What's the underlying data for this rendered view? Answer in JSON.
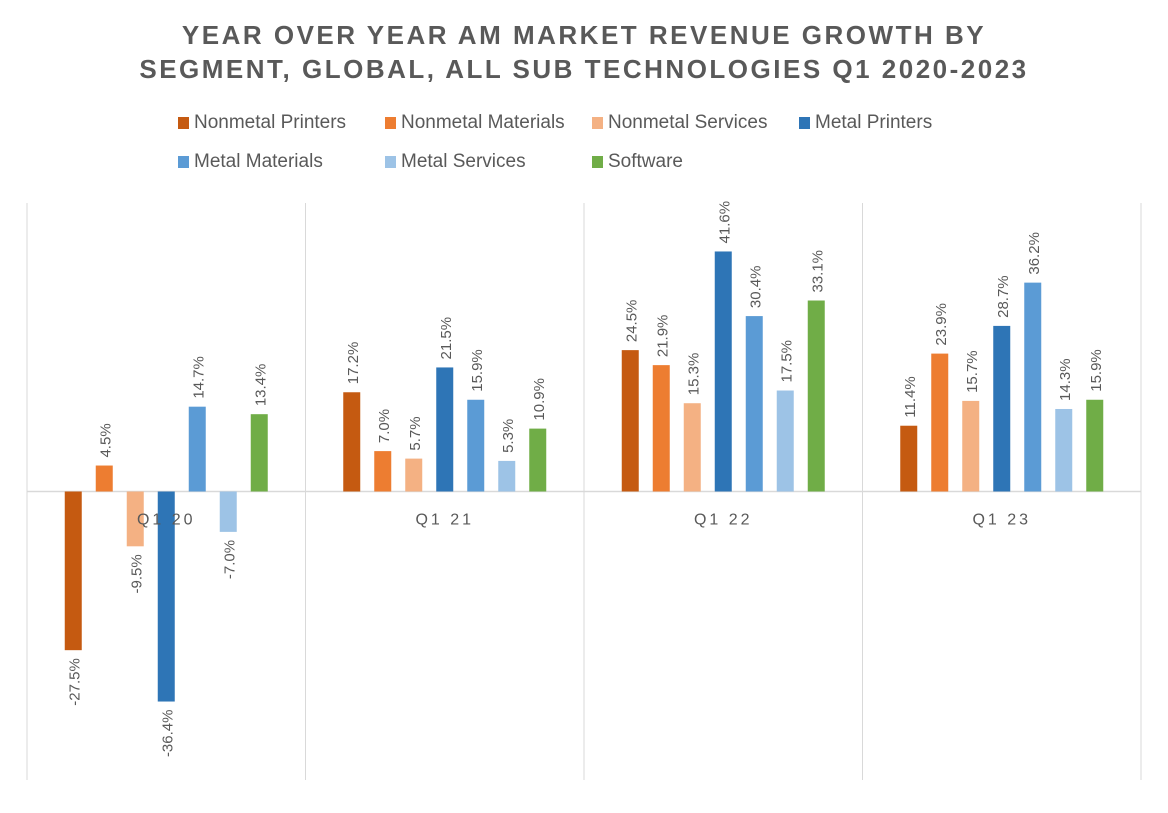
{
  "chart_data": {
    "type": "bar",
    "title_lines": [
      "YEAR OVER YEAR AM MARKET REVENUE GROWTH BY",
      "SEGMENT, GLOBAL, ALL SUB TECHNOLOGIES Q1 2020-2023"
    ],
    "categories": [
      "Q1 20",
      "Q1 21",
      "Q1 22",
      "Q1 23"
    ],
    "series": [
      {
        "name": "Nonmetal Printers",
        "color": "#C55A11",
        "values": [
          -27.5,
          17.2,
          24.5,
          11.4
        ]
      },
      {
        "name": "Nonmetal Materials",
        "color": "#ED7D31",
        "values": [
          4.5,
          7.0,
          21.9,
          23.9
        ]
      },
      {
        "name": "Nonmetal Services",
        "color": "#F4B183",
        "values": [
          -9.5,
          5.7,
          15.3,
          15.7
        ]
      },
      {
        "name": "Metal Printers",
        "color": "#2E75B6",
        "values": [
          -36.4,
          21.5,
          41.6,
          28.7
        ]
      },
      {
        "name": "Metal Materials",
        "color": "#5B9BD5",
        "values": [
          14.7,
          15.9,
          30.4,
          36.2
        ]
      },
      {
        "name": "Metal Services",
        "color": "#9DC3E6",
        "values": [
          -7.0,
          5.3,
          17.5,
          14.3
        ]
      },
      {
        "name": "Software",
        "color": "#70AD47",
        "values": [
          13.4,
          10.9,
          33.1,
          15.9
        ]
      }
    ],
    "value_format": "%",
    "ylim": [
      -50,
      50
    ],
    "legend": "top",
    "grid": "vertical category separators"
  }
}
